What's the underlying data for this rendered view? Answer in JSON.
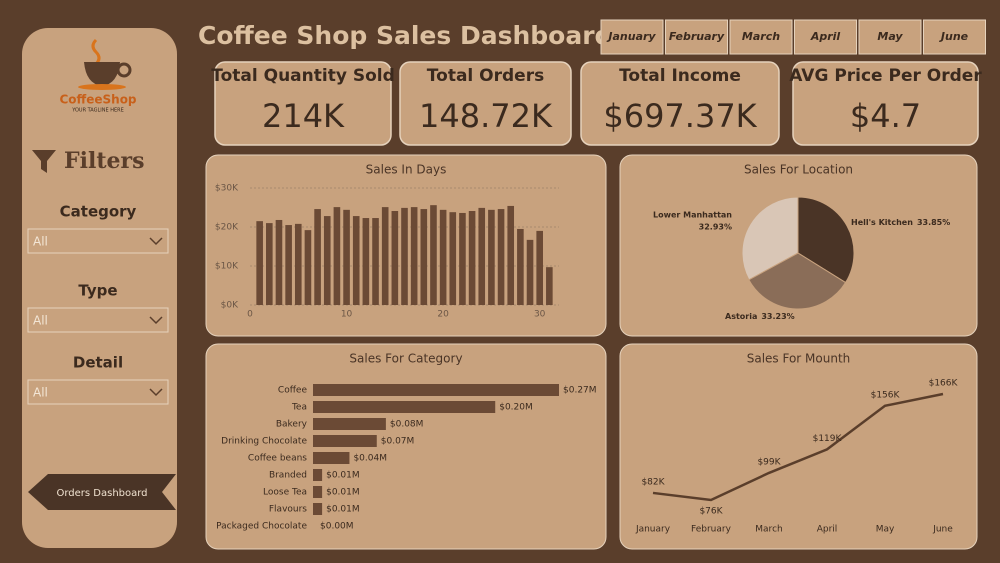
{
  "header": {
    "title": "Coffee  Shop Sales Dashboard",
    "months": [
      "January",
      "February",
      "March",
      "April",
      "May",
      "June"
    ]
  },
  "sidebar": {
    "logo": "CoffeeShop",
    "tagline": "YOUR TAGLINE HERE",
    "filters_title": "Filters",
    "filters": [
      {
        "label": "Category",
        "value": "All"
      },
      {
        "label": "Type",
        "value": "All"
      },
      {
        "label": "Detail",
        "value": "All"
      }
    ],
    "button": "Orders Dashboard"
  },
  "kpis": [
    {
      "label": "Total Quantity Sold",
      "value": "214K"
    },
    {
      "label": "Total Orders",
      "value": "148.72K"
    },
    {
      "label": "Total Income",
      "value": "$697.37K"
    },
    {
      "label": "AVG Price Per Order",
      "value": "$4.7"
    }
  ],
  "chart_data": [
    {
      "type": "bar",
      "title": "Sales In Days",
      "color": "#6b4a35",
      "x": [
        1,
        2,
        3,
        4,
        5,
        6,
        7,
        8,
        9,
        10,
        11,
        12,
        13,
        14,
        15,
        16,
        17,
        18,
        19,
        20,
        21,
        22,
        23,
        24,
        25,
        26,
        27,
        28,
        29,
        30,
        31
      ],
      "values": [
        21500,
        21000,
        21800,
        20500,
        20800,
        19200,
        24600,
        22800,
        25100,
        24400,
        22800,
        22300,
        22300,
        25100,
        24100,
        24900,
        25100,
        24600,
        25600,
        24400,
        23800,
        23600,
        24100,
        24900,
        24400,
        24600,
        25400,
        19500,
        16700,
        19000,
        9700
      ],
      "xlim": [
        0,
        32
      ],
      "xticks": [
        0,
        10,
        20,
        30
      ],
      "ylim": [
        0,
        30000
      ],
      "yticks": [
        {
          "value": 0,
          "label": "$0K"
        },
        {
          "value": 10000,
          "label": "$10K"
        },
        {
          "value": 20000,
          "label": "$20K"
        },
        {
          "value": 30000,
          "label": "$30K"
        }
      ]
    },
    {
      "type": "pie",
      "title": "Sales For Location",
      "categories": [
        "Hell's Kitchen",
        "Astoria",
        "Lower Manhattan"
      ],
      "values": [
        33.85,
        33.23,
        32.93
      ],
      "value_labels": [
        "33.85%",
        "33.23%",
        "32.93%"
      ],
      "colors": [
        "#4a3426",
        "#8a6d58",
        "#d9c6b6"
      ]
    },
    {
      "type": "hbar",
      "title": "Sales For Category",
      "color": "#6b4a35",
      "categories": [
        "Coffee",
        "Tea",
        "Bakery",
        "Drinking Chocolate",
        "Coffee beans",
        "Branded",
        "Loose Tea",
        "Flavours",
        "Packaged Chocolate"
      ],
      "values": [
        0.27,
        0.2,
        0.08,
        0.07,
        0.04,
        0.01,
        0.01,
        0.01,
        0.0
      ],
      "value_labels": [
        "$0.27M",
        "$0.20M",
        "$0.08M",
        "$0.07M",
        "$0.04M",
        "$0.01M",
        "$0.01M",
        "$0.01M",
        "$0.00M"
      ]
    },
    {
      "type": "line",
      "title": "Sales For Mounth",
      "color": "#5a3e2b",
      "categories": [
        "January",
        "February",
        "March",
        "April",
        "May",
        "June"
      ],
      "values": [
        82,
        76,
        99,
        119,
        156,
        166
      ],
      "value_labels": [
        "$82K",
        "$76K",
        "$99K",
        "$119K",
        "$156K",
        "$166K"
      ]
    }
  ]
}
